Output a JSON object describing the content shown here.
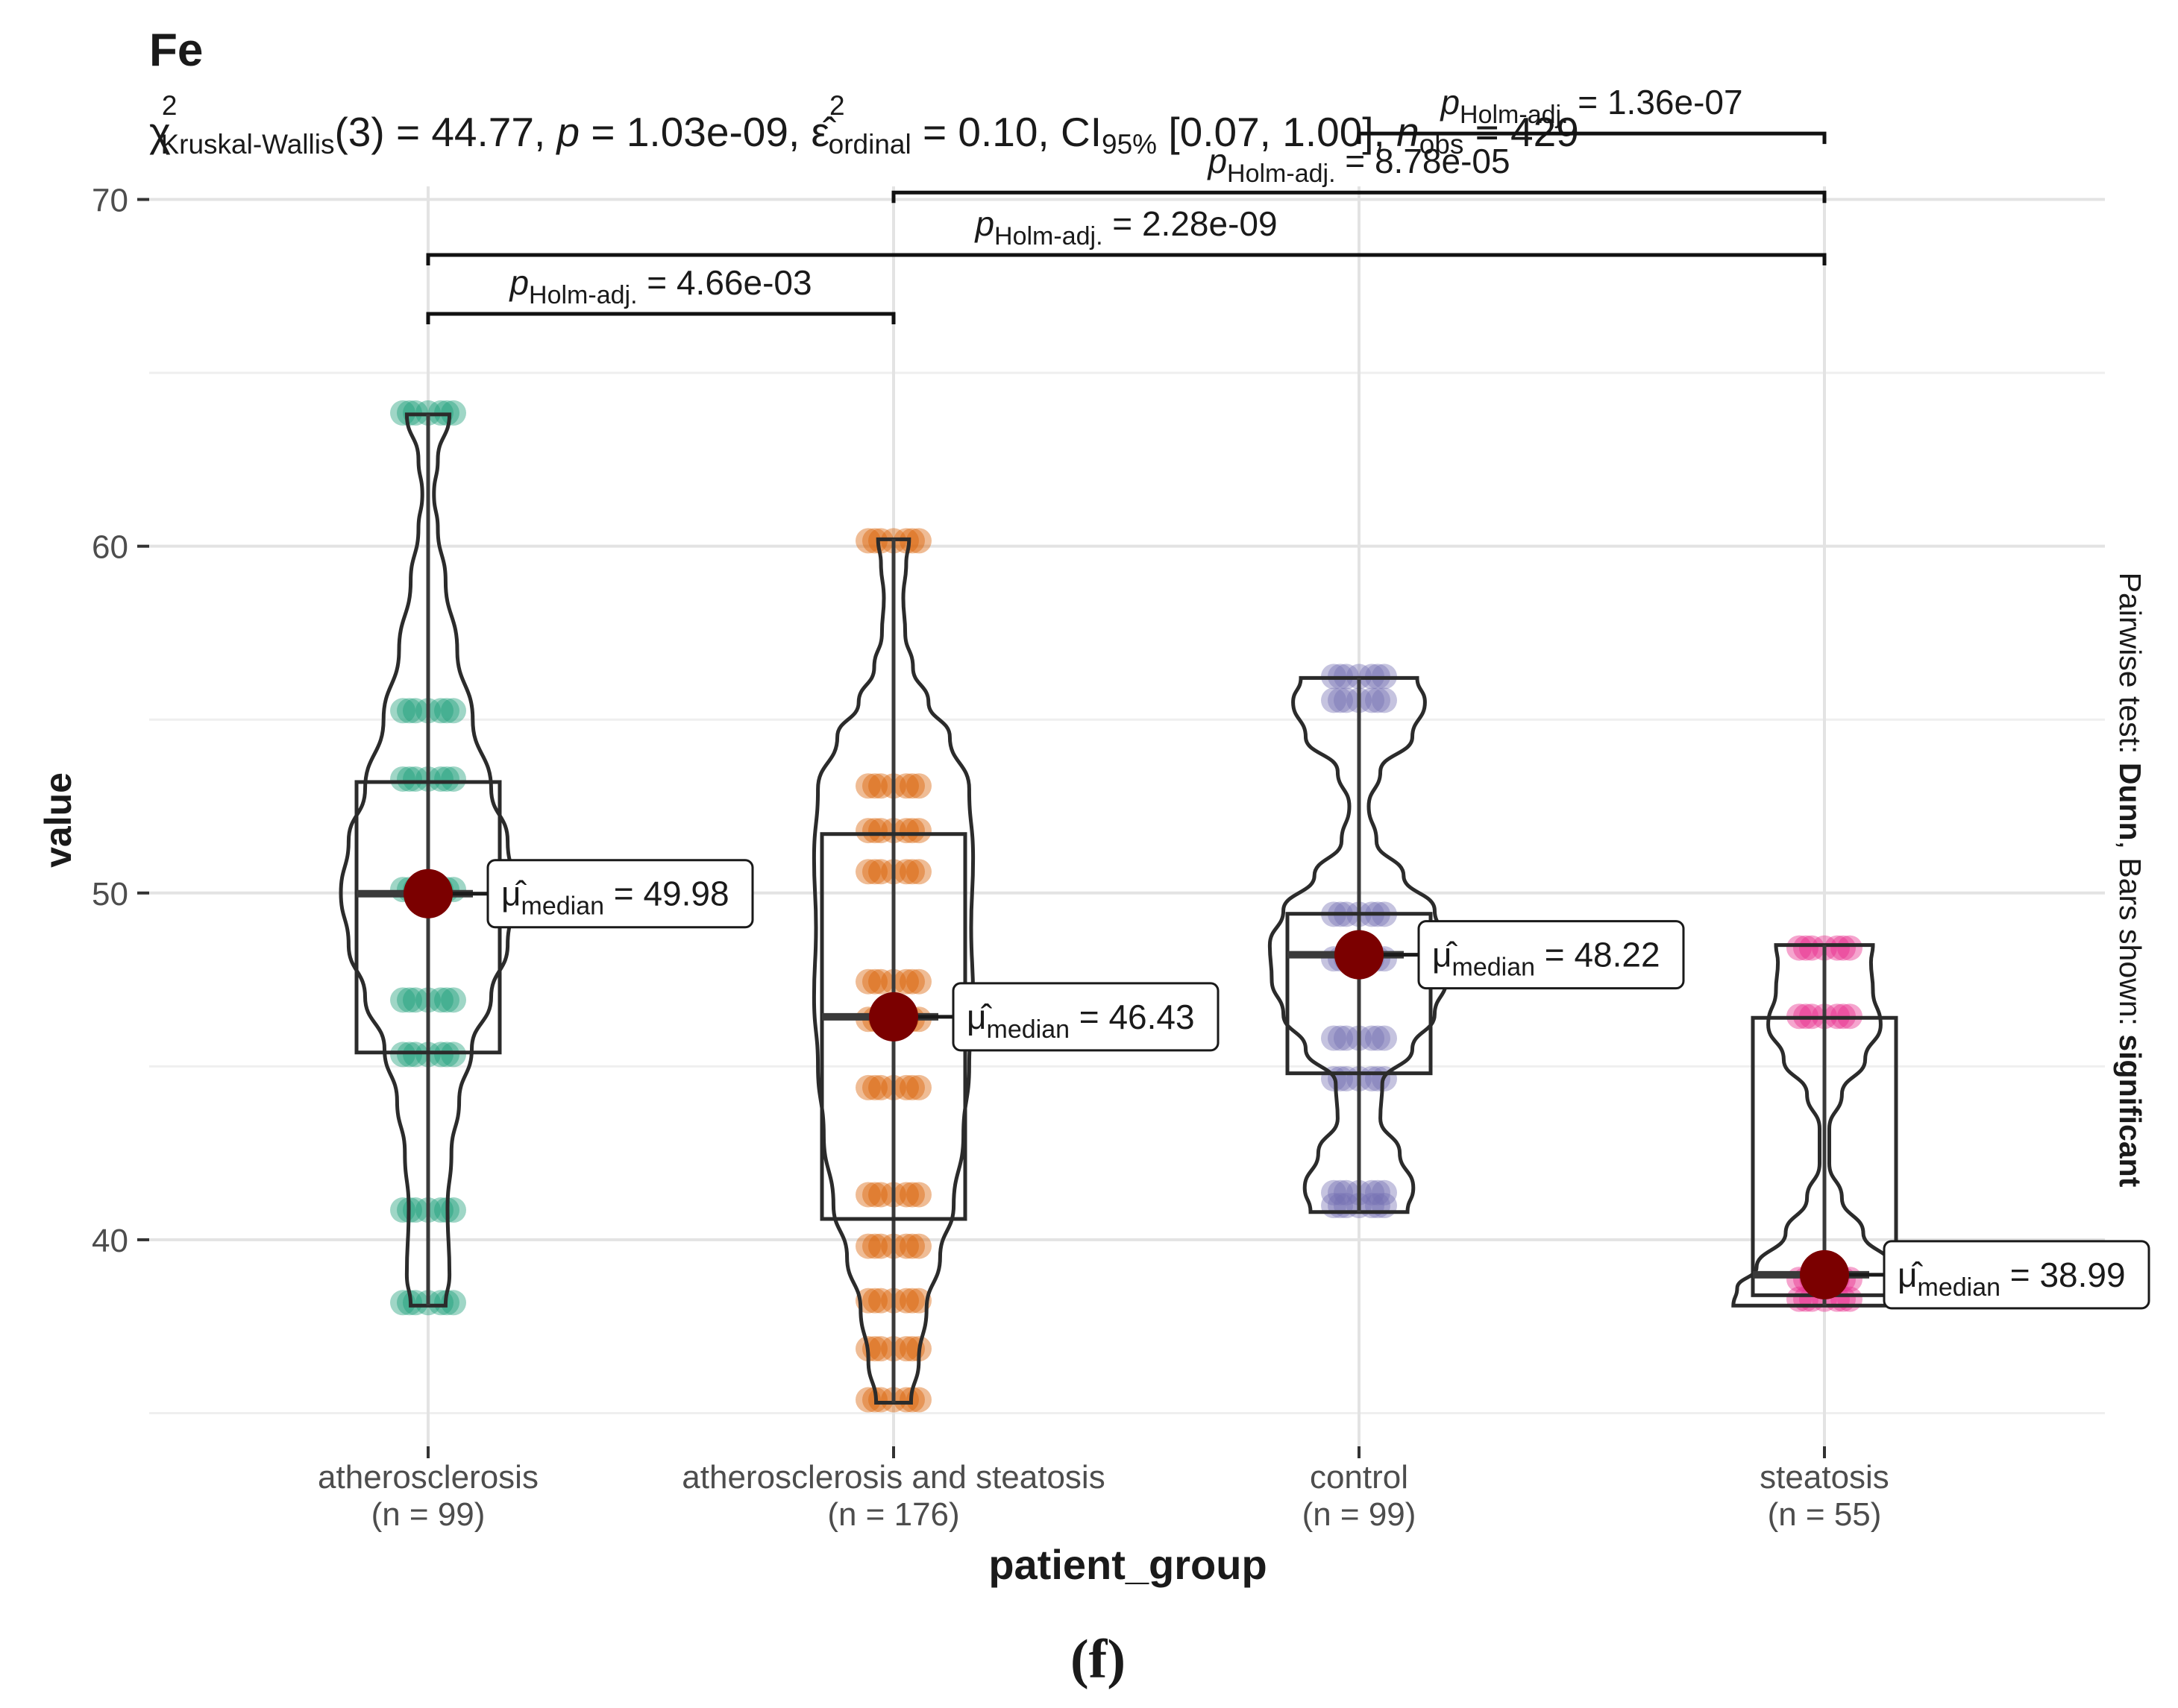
{
  "chart_data": {
    "type": "violin-box",
    "title": "Fe",
    "subtitle": {
      "chi": "χ",
      "chi_sup": "2",
      "chi_sub": "Kruskal-Wallis",
      "df_part": "(3) = 44.77, ",
      "p_sym": "p",
      "p_part": " = 1.03e-09, ",
      "eps": "ε̂",
      "eps_sup": "2",
      "eps_sub": "ordinal",
      "eps_part": " = 0.10, CI",
      "ci_sub": "95%",
      "ci_part": " [0.07, 1.00], ",
      "n_sym": "n",
      "n_sub": "obs",
      "n_part": " = 429"
    },
    "xlabel": "patient_group",
    "ylabel": "value",
    "ylim": [
      34,
      73
    ],
    "yticks": [
      "40",
      "50",
      "60",
      "70"
    ],
    "right_caption": {
      "part1": "Pairwise test: ",
      "part2": "Dunn",
      "part3": ", Bars shown: ",
      "part4": "significant"
    },
    "panel_label": "(f)",
    "groups": [
      {
        "name": "atherosclerosis",
        "n_label": "(n = 99)",
        "color": "#1b9e77",
        "median": 49.98,
        "median_label": "49.98",
        "q1": 45.4,
        "q3": 53.2,
        "min": 38.1,
        "max": 63.8,
        "point_levels": [
          38.1,
          40.9,
          45.3,
          47.0,
          50.1,
          53.2,
          55.3,
          63.8
        ],
        "violin": [
          [
            38.1,
            0.18
          ],
          [
            39.0,
            0.22
          ],
          [
            40.9,
            0.2
          ],
          [
            42.5,
            0.24
          ],
          [
            44.0,
            0.32
          ],
          [
            45.5,
            0.45
          ],
          [
            47.0,
            0.65
          ],
          [
            48.5,
            0.82
          ],
          [
            50.0,
            0.9
          ],
          [
            51.5,
            0.82
          ],
          [
            53.0,
            0.65
          ],
          [
            55.0,
            0.46
          ],
          [
            57.0,
            0.3
          ],
          [
            59.0,
            0.18
          ],
          [
            60.5,
            0.1
          ],
          [
            61.5,
            0.06
          ],
          [
            62.5,
            0.1
          ],
          [
            63.8,
            0.22
          ]
        ]
      },
      {
        "name": "atherosclerosis and steatosis",
        "n_label": "(n = 176)",
        "color": "#d95f02",
        "median": 46.43,
        "median_label": "46.43",
        "q1": 40.6,
        "q3": 51.7,
        "min": 35.3,
        "max": 60.2,
        "point_levels": [
          35.3,
          36.9,
          38.2,
          39.9,
          41.3,
          44.3,
          46.4,
          47.4,
          50.7,
          51.8,
          53.0,
          60.2
        ],
        "violin": [
          [
            35.3,
            0.18
          ],
          [
            36.5,
            0.26
          ],
          [
            38.0,
            0.34
          ],
          [
            39.5,
            0.48
          ],
          [
            41.0,
            0.62
          ],
          [
            43.0,
            0.72
          ],
          [
            45.0,
            0.78
          ],
          [
            47.0,
            0.82
          ],
          [
            49.0,
            0.8
          ],
          [
            51.0,
            0.82
          ],
          [
            53.0,
            0.78
          ],
          [
            54.5,
            0.58
          ],
          [
            55.5,
            0.36
          ],
          [
            56.5,
            0.2
          ],
          [
            57.5,
            0.12
          ],
          [
            58.5,
            0.1
          ],
          [
            59.5,
            0.13
          ],
          [
            60.2,
            0.16
          ]
        ]
      },
      {
        "name": "control",
        "n_label": "(n = 99)",
        "color": "#7570b3",
        "median": 48.22,
        "median_label": "48.22",
        "q1": 44.8,
        "q3": 49.4,
        "min": 40.8,
        "max": 56.2,
        "point_levels": [
          40.9,
          41.4,
          44.6,
          45.9,
          48.1,
          49.3,
          55.6,
          56.2
        ],
        "violin": [
          [
            40.8,
            0.5
          ],
          [
            41.5,
            0.56
          ],
          [
            42.5,
            0.42
          ],
          [
            43.5,
            0.22
          ],
          [
            44.5,
            0.24
          ],
          [
            45.5,
            0.55
          ],
          [
            46.5,
            0.78
          ],
          [
            47.5,
            0.9
          ],
          [
            48.5,
            0.92
          ],
          [
            49.5,
            0.78
          ],
          [
            50.5,
            0.46
          ],
          [
            51.5,
            0.18
          ],
          [
            52.5,
            0.1
          ],
          [
            53.5,
            0.22
          ],
          [
            54.5,
            0.55
          ],
          [
            55.5,
            0.68
          ],
          [
            56.2,
            0.6
          ]
        ]
      },
      {
        "name": "steatosis",
        "n_label": "(n = 55)",
        "color": "#e7298a",
        "median": 38.99,
        "median_label": "38.99",
        "q1": 38.4,
        "q3": 46.4,
        "min": 38.1,
        "max": 48.5,
        "point_levels": [
          38.2,
          38.9,
          46.4,
          48.5
        ],
        "violin": [
          [
            38.1,
            0.94
          ],
          [
            38.6,
            0.9
          ],
          [
            39.2,
            0.7
          ],
          [
            40.2,
            0.4
          ],
          [
            41.2,
            0.18
          ],
          [
            42.2,
            0.05
          ],
          [
            43.2,
            0.05
          ],
          [
            44.2,
            0.18
          ],
          [
            45.2,
            0.42
          ],
          [
            46.2,
            0.58
          ],
          [
            47.2,
            0.5
          ],
          [
            48.0,
            0.48
          ],
          [
            48.5,
            0.5
          ]
        ]
      }
    ],
    "comparisons": [
      {
        "from": 0,
        "to": 1,
        "y": 66.7,
        "label": "4.66e-03"
      },
      {
        "from": 0,
        "to": 3,
        "y": 68.4,
        "label": "2.28e-09"
      },
      {
        "from": 1,
        "to": 3,
        "y": 70.2,
        "label": "8.78e-05"
      },
      {
        "from": 2,
        "to": 3,
        "y": 71.9,
        "label": "1.36e-07"
      }
    ],
    "p_label": {
      "p": "p",
      "sub": "Holm-adj.",
      "eq": " = "
    },
    "median_label": {
      "mu": "μ̂",
      "sub": "median",
      "eq": " = "
    },
    "median_color": "#7b0000"
  }
}
